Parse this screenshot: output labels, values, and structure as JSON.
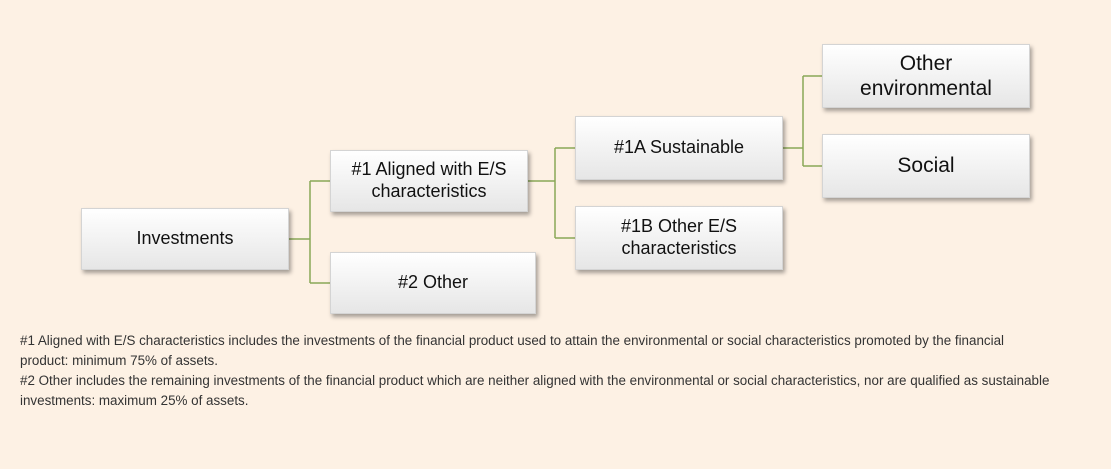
{
  "nodes": [
    {
      "label": "Investments"
    },
    {
      "label": "#1 Aligned with E/S characteristics"
    },
    {
      "label": "#2 Other"
    },
    {
      "label": "#1A Sustainable"
    },
    {
      "label": "#1B Other E/S characteristics"
    },
    {
      "label": "Other environmental"
    },
    {
      "label": "Social"
    }
  ],
  "notes": [
    "#1 Aligned with E/S characteristics includes the investments of the financial product used to attain the environmental or social characteristics promoted by the financial product: minimum 75% of assets.",
    "#2 Other includes the remaining investments of the financial product which are neither aligned with the environmental or social characteristics, nor are qualified as sustainable investments: maximum 25% of assets."
  ]
}
